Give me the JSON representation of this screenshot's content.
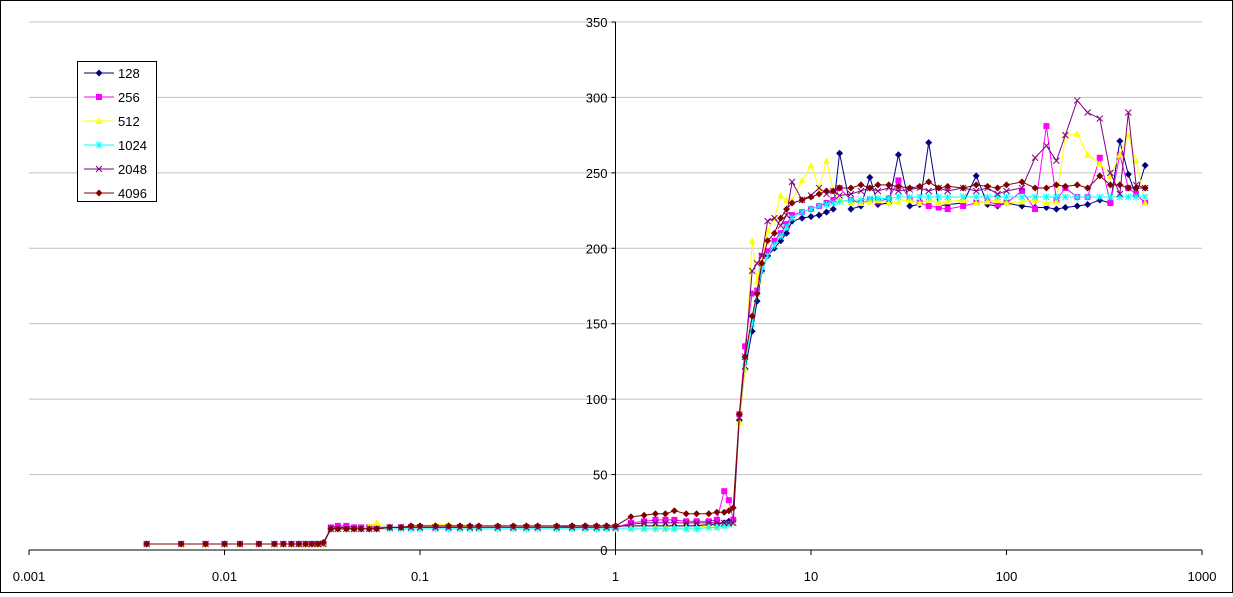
{
  "chart_data": {
    "type": "line",
    "title": "",
    "xlabel": "",
    "ylabel": "",
    "xscale": "log",
    "xlim": [
      0.001,
      1000
    ],
    "ylim": [
      0,
      350
    ],
    "x_ticks": [
      "0.001",
      "0.01",
      "0.1",
      "1",
      "10",
      "100",
      "1000"
    ],
    "y_ticks": [
      "0",
      "50",
      "100",
      "150",
      "200",
      "250",
      "300",
      "350"
    ],
    "grid": "horizontal",
    "legend_position": "top-left",
    "x": [
      0.004,
      0.006,
      0.008,
      0.01,
      0.012,
      0.015,
      0.018,
      0.02,
      0.022,
      0.024,
      0.026,
      0.028,
      0.03,
      0.032,
      0.035,
      0.038,
      0.042,
      0.046,
      0.05,
      0.055,
      0.06,
      0.07,
      0.08,
      0.09,
      0.1,
      0.12,
      0.14,
      0.16,
      0.18,
      0.2,
      0.25,
      0.3,
      0.35,
      0.4,
      0.5,
      0.6,
      0.7,
      0.8,
      0.9,
      1.0,
      1.2,
      1.4,
      1.6,
      1.8,
      2.0,
      2.3,
      2.6,
      3.0,
      3.3,
      3.6,
      3.8,
      4.0,
      4.3,
      4.6,
      5.0,
      5.3,
      5.6,
      6.0,
      6.5,
      7.0,
      7.5,
      8.0,
      9.0,
      10,
      11,
      12,
      13,
      14,
      16,
      18,
      20,
      22,
      25,
      28,
      32,
      36,
      40,
      45,
      50,
      60,
      70,
      80,
      90,
      100,
      120,
      140,
      160,
      180,
      200,
      230,
      260,
      300,
      340,
      380,
      420,
      460,
      512
    ],
    "series": [
      {
        "name": "128",
        "color": "#000080",
        "marker": "diamond",
        "values": [
          4,
          4,
          4,
          4,
          4,
          4,
          4,
          4,
          4,
          4,
          4,
          4,
          4,
          4,
          14,
          15,
          15,
          14,
          14,
          14,
          15,
          15,
          15,
          15,
          15,
          15,
          15,
          15,
          15,
          15,
          15,
          15,
          15,
          15,
          15,
          16,
          16,
          16,
          16,
          16,
          16,
          16,
          16,
          16,
          16,
          16,
          16,
          17,
          17,
          18,
          19,
          20,
          86,
          120,
          145,
          165,
          185,
          195,
          200,
          205,
          210,
          218,
          220,
          221,
          222,
          224,
          226,
          263,
          226,
          228,
          247,
          229,
          230,
          262,
          228,
          229,
          270,
          228,
          229,
          230,
          248,
          229,
          228,
          230,
          228,
          227,
          227,
          226,
          227,
          228,
          229,
          232,
          230,
          271,
          249,
          235,
          255
        ]
      },
      {
        "name": "256",
        "color": "#FF00FF",
        "marker": "square",
        "values": [
          4,
          4,
          4,
          4,
          4,
          4,
          4,
          4,
          4,
          4,
          4,
          4,
          4,
          4,
          15,
          16,
          16,
          15,
          15,
          15,
          15,
          15,
          15,
          15,
          15,
          15,
          15,
          15,
          15,
          15,
          15,
          15,
          15,
          15,
          15,
          15,
          15,
          15,
          15,
          15,
          18,
          19,
          20,
          20,
          20,
          19,
          19,
          19,
          20,
          39,
          33,
          20,
          90,
          135,
          170,
          172,
          195,
          198,
          205,
          210,
          216,
          222,
          224,
          226,
          228,
          230,
          232,
          240,
          232,
          230,
          232,
          231,
          233,
          245,
          232,
          230,
          228,
          227,
          226,
          228,
          230,
          231,
          229,
          230,
          238,
          226,
          281,
          232,
          240,
          234,
          234,
          260,
          230,
          262,
          240,
          236,
          230
        ]
      },
      {
        "name": "512",
        "color": "#FFFF00",
        "marker": "triangle",
        "values": [
          4,
          4,
          4,
          4,
          4,
          4,
          4,
          4,
          4,
          4,
          4,
          4,
          4,
          4,
          14,
          14,
          14,
          14,
          14,
          16,
          18,
          15,
          15,
          15,
          16,
          17,
          17,
          16,
          15,
          15,
          15,
          15,
          15,
          15,
          15,
          15,
          15,
          15,
          15,
          15,
          15,
          15,
          15,
          15,
          15,
          15,
          15,
          16,
          16,
          17,
          17,
          18,
          85,
          120,
          205,
          178,
          193,
          212,
          220,
          235,
          232,
          232,
          245,
          255,
          240,
          258,
          238,
          232,
          230,
          230,
          231,
          232,
          230,
          231,
          232,
          230,
          232,
          230,
          231,
          232,
          230,
          231,
          232,
          230,
          231,
          232,
          230,
          231,
          275,
          276,
          262,
          256,
          248,
          262,
          275,
          258,
          230
        ]
      },
      {
        "name": "1024",
        "color": "#00FFFF",
        "marker": "star",
        "values": [
          4,
          4,
          4,
          4,
          4,
          4,
          4,
          4,
          4,
          4,
          4,
          4,
          4,
          4,
          14,
          14,
          14,
          14,
          14,
          14,
          14,
          14,
          14,
          14,
          14,
          14,
          14,
          14,
          14,
          14,
          14,
          14,
          14,
          14,
          14,
          14,
          14,
          14,
          14,
          14,
          14,
          14,
          14,
          14,
          14,
          14,
          14,
          15,
          15,
          16,
          17,
          18,
          88,
          125,
          150,
          170,
          185,
          195,
          202,
          208,
          214,
          220,
          224,
          226,
          228,
          229,
          230,
          231,
          232,
          232,
          233,
          233,
          233,
          234,
          234,
          234,
          234,
          234,
          234,
          234,
          234,
          234,
          234,
          234,
          234,
          234,
          234,
          234,
          234,
          234,
          234,
          234,
          234,
          234,
          234,
          234,
          234
        ]
      },
      {
        "name": "2048",
        "color": "#800080",
        "marker": "x",
        "values": [
          4,
          4,
          4,
          4,
          4,
          4,
          4,
          4,
          4,
          4,
          4,
          4,
          4,
          4,
          14,
          14,
          14,
          14,
          14,
          14,
          14,
          15,
          15,
          15,
          15,
          15,
          15,
          15,
          15,
          15,
          15,
          15,
          15,
          15,
          15,
          15,
          15,
          15,
          15,
          15,
          17,
          18,
          18,
          18,
          18,
          18,
          18,
          18,
          18,
          18,
          18,
          18,
          88,
          128,
          185,
          190,
          195,
          218,
          220,
          215,
          222,
          244,
          232,
          235,
          240,
          236,
          238,
          235,
          236,
          238,
          240,
          238,
          240,
          238,
          239,
          240,
          238,
          240,
          238,
          240,
          238,
          240,
          236,
          238,
          240,
          260,
          268,
          258,
          275,
          298,
          290,
          286,
          250,
          236,
          290,
          242,
          240
        ]
      },
      {
        "name": "4096",
        "color": "#800000",
        "marker": "diamond",
        "values": [
          4,
          4,
          4,
          4,
          4,
          4,
          4,
          4,
          4,
          4,
          4,
          4,
          4,
          5,
          14,
          14,
          14,
          14,
          14,
          14,
          14,
          15,
          15,
          16,
          16,
          16,
          16,
          16,
          16,
          16,
          16,
          16,
          16,
          16,
          16,
          16,
          16,
          16,
          16,
          16,
          22,
          23,
          24,
          24,
          26,
          24,
          24,
          24,
          25,
          25,
          26,
          28,
          90,
          128,
          155,
          170,
          190,
          205,
          210,
          220,
          226,
          230,
          232,
          234,
          236,
          238,
          238,
          240,
          240,
          242,
          240,
          242,
          242,
          241,
          240,
          241,
          244,
          240,
          241,
          240,
          242,
          241,
          240,
          242,
          244,
          240,
          240,
          242,
          241,
          242,
          240,
          248,
          242,
          242,
          240,
          240,
          240
        ]
      }
    ]
  }
}
